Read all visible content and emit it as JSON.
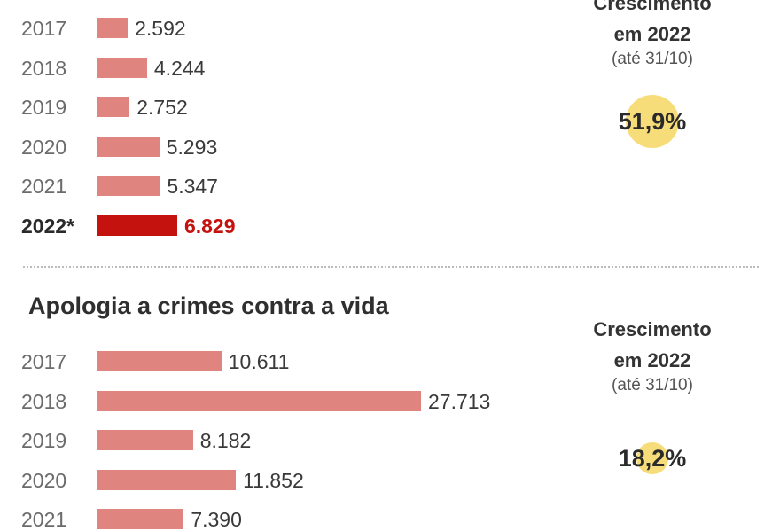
{
  "chart_data": [
    {
      "type": "bar",
      "orientation": "horizontal",
      "title": "",
      "categories": [
        "2017",
        "2018",
        "2019",
        "2020",
        "2021",
        "2022*"
      ],
      "values": [
        2592,
        4244,
        2752,
        5293,
        5347,
        6829
      ],
      "value_labels": [
        "2.592",
        "4.244",
        "2.752",
        "5.293",
        "5.347",
        "6.829"
      ],
      "highlight_index": 5,
      "colors": {
        "bar": "#e0847f",
        "highlight": "#c4120e",
        "circle": "#f7dc7a"
      },
      "growth": {
        "heading_line1": "Crescimento",
        "heading_line2": "em 2022",
        "note": "(até 31/10)",
        "value": 51.9,
        "label": "51,9%"
      }
    },
    {
      "type": "bar",
      "orientation": "horizontal",
      "title": "Apologia a crimes contra a vida",
      "categories": [
        "2017",
        "2018",
        "2019",
        "2020",
        "2021"
      ],
      "values": [
        10611,
        27713,
        8182,
        11852,
        7390
      ],
      "value_labels": [
        "10.611",
        "27.713",
        "8.182",
        "11.852",
        "7.390"
      ],
      "highlight_index": -1,
      "colors": {
        "bar": "#e0847f",
        "highlight": "#c4120e",
        "circle": "#f7dc7a"
      },
      "growth": {
        "heading_line1": "Crescimento",
        "heading_line2": "em 2022",
        "note": "(até 31/10)",
        "value": 18.2,
        "label": "18,2%"
      }
    }
  ]
}
